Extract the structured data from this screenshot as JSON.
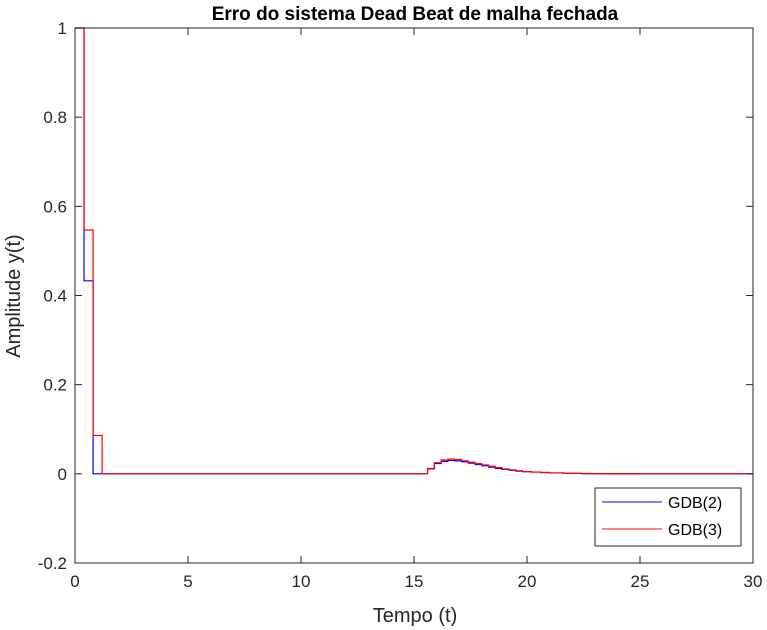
{
  "chart_data": {
    "type": "line",
    "title": "Erro do sistema Dead Beat de malha fechada",
    "xlabel": "Tempo (t)",
    "ylabel": "Amplitude y(t)",
    "xlim": [
      0,
      30
    ],
    "ylim": [
      -0.2,
      1
    ],
    "xticks": [
      "0",
      "5",
      "10",
      "15",
      "20",
      "25",
      "30"
    ],
    "yticks": [
      "-0.2",
      "0",
      "0.2",
      "0.4",
      "0.6",
      "0.8",
      "1"
    ],
    "grid": false,
    "legend_position": "bottom-right",
    "series": [
      {
        "name": "GDB(2)",
        "color": "#0000ff",
        "style": "stairs",
        "x": [
          0,
          0.4,
          0.8,
          1.2,
          15.3,
          15.6,
          15.9,
          16.2,
          16.5,
          16.8,
          17.1,
          17.4,
          17.7,
          18.0,
          18.3,
          18.6,
          18.9,
          19.2,
          19.5,
          19.8,
          20.2,
          20.6,
          21.0,
          21.6,
          22.4,
          23.4,
          25.0,
          30
        ],
        "y": [
          1,
          0.433,
          0,
          0,
          0,
          0.011,
          0.023,
          0.028,
          0.03,
          0.029,
          0.027,
          0.024,
          0.021,
          0.018,
          0.015,
          0.012,
          0.01,
          0.008,
          0.006,
          0.005,
          0.004,
          0.003,
          0.002,
          0.001,
          0.0005,
          0.0002,
          0,
          0
        ]
      },
      {
        "name": "GDB(3)",
        "color": "#ff0000",
        "style": "stairs",
        "x": [
          0,
          0.4,
          0.8,
          1.2,
          15.3,
          15.6,
          15.9,
          16.2,
          16.5,
          16.8,
          17.1,
          17.4,
          17.7,
          18.0,
          18.3,
          18.6,
          18.9,
          19.2,
          19.5,
          19.8,
          20.2,
          20.6,
          21.0,
          21.6,
          22.4,
          23.4,
          25.0,
          30
        ],
        "y": [
          1,
          0.547,
          0.086,
          0,
          0,
          0.012,
          0.025,
          0.031,
          0.033,
          0.032,
          0.029,
          0.026,
          0.023,
          0.02,
          0.017,
          0.014,
          0.011,
          0.009,
          0.007,
          0.005,
          0.004,
          0.003,
          0.002,
          0.001,
          0.0005,
          0.0002,
          0,
          0
        ]
      }
    ]
  }
}
